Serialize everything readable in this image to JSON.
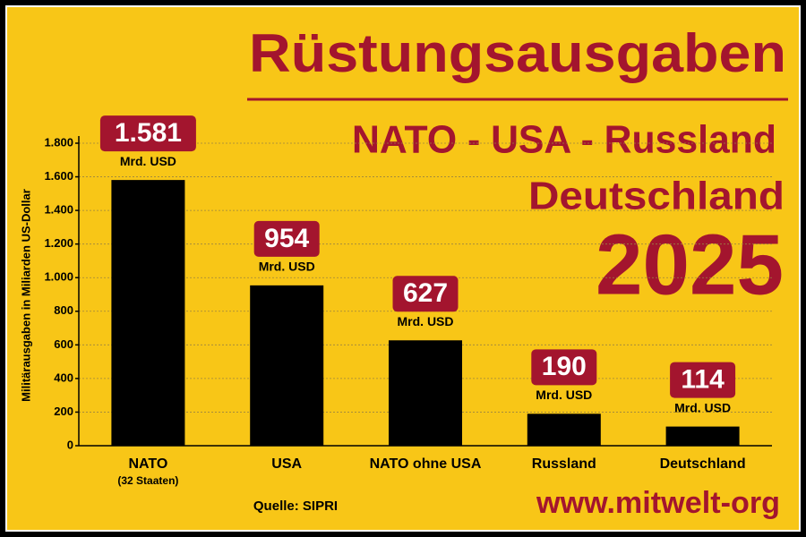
{
  "chart_data": {
    "type": "bar",
    "title": "Rüstungsausgaben",
    "subtitle_lines": [
      "NATO - USA - Russland",
      "Deutschland",
      "2025"
    ],
    "y_label": "Militärausgaben in Miliarden US-Dollar",
    "categories": [
      "NATO",
      "USA",
      "NATO ohne USA",
      "Russland",
      "Deutschland"
    ],
    "category_note": "(32 Staaten)",
    "values": [
      1581,
      954,
      627,
      190,
      114
    ],
    "value_labels": [
      "1.581",
      "954",
      "627",
      "190",
      "114"
    ],
    "unit_label": "Mrd. USD",
    "color": "#000000",
    "label_color": "#a3152e",
    "ylim": [
      0,
      1800
    ],
    "yticks": [
      0,
      200,
      400,
      600,
      800,
      {
        "value": 1000,
        "label": "1.000"
      },
      {
        "value": 1200,
        "label": "1.200"
      },
      {
        "value": 1400,
        "label": "1.400"
      },
      {
        "value": 1600,
        "label": "1.600"
      },
      {
        "value": 1800,
        "label": "1.800"
      }
    ],
    "grid": true,
    "source": "Quelle: SIPRI",
    "website": "www.mitwelt-org"
  }
}
